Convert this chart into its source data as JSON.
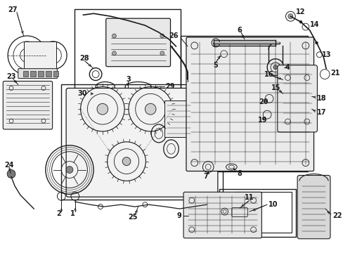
{
  "bg_color": "#ffffff",
  "line_color": "#1a1a1a",
  "fig_width": 4.89,
  "fig_height": 3.6,
  "dpi": 100,
  "label_fontsize": 7,
  "label_bold": true
}
